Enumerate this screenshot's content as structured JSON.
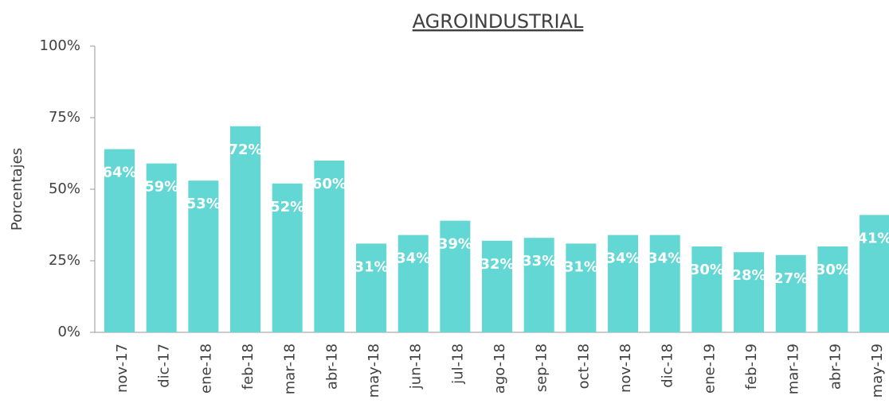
{
  "chart_data": {
    "type": "bar",
    "title": "AGROINDUSTRIAL",
    "y_label": "Porcentajes",
    "categories": [
      "nov-17",
      "dic-17",
      "ene-18",
      "feb-18",
      "mar-18",
      "abr-18",
      "may-18",
      "jun-18",
      "jul-18",
      "ago-18",
      "sep-18",
      "oct-18",
      "nov-18",
      "dic-18",
      "ene-19",
      "feb-19",
      "mar-19",
      "abr-19",
      "may-19"
    ],
    "values": [
      64,
      59,
      53,
      72,
      52,
      60,
      31,
      34,
      39,
      32,
      33,
      31,
      34,
      34,
      30,
      28,
      27,
      30,
      41
    ],
    "value_labels": [
      "64%",
      "59%",
      "53%",
      "72%",
      "52%",
      "60%",
      "31%",
      "34%",
      "39%",
      "32%",
      "33%",
      "31%",
      "34%",
      "34%",
      "30%",
      "28%",
      "27%",
      "30%",
      "41%"
    ],
    "color": "#62d7d3",
    "ylim": [
      0,
      100
    ],
    "yticks": [
      {
        "value": 0,
        "label": "0%"
      },
      {
        "value": 25,
        "label": "25%"
      },
      {
        "value": 50,
        "label": "50%"
      },
      {
        "value": 75,
        "label": "75%"
      },
      {
        "value": 100,
        "label": "100%"
      }
    ],
    "grid": false
  }
}
